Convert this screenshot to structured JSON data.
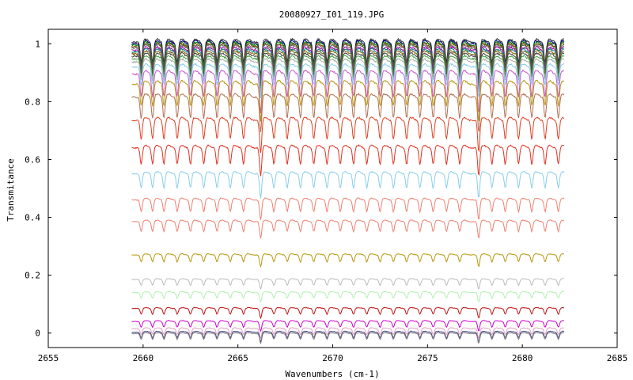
{
  "chart_data": {
    "type": "line",
    "title": "20080927_I01_119.JPG",
    "xlabel": "Wavenumbers (cm-1)",
    "ylabel": "Transmitance",
    "xlim": [
      2655,
      2685
    ],
    "ylim": [
      -0.05,
      1.05
    ],
    "xticks": [
      "2655",
      "2660",
      "2665",
      "2670",
      "2675",
      "2680",
      "2685"
    ],
    "yticks": [
      "0",
      "0.2",
      "0.4",
      "0.6",
      "0.8",
      "1"
    ],
    "grid": false,
    "legend": "none",
    "x_range_of_data": [
      2659.4,
      2682.2
    ],
    "absorption_lines_cm1": [
      2659.9,
      2660.5,
      2661.1,
      2661.8,
      2662.5,
      2663.2,
      2663.9,
      2664.6,
      2665.3,
      2666.2,
      2666.9,
      2667.6,
      2668.3,
      2669.0,
      2669.7,
      2670.4,
      2671.1,
      2671.8,
      2672.5,
      2673.2,
      2673.9,
      2674.6,
      2675.3,
      2676.0,
      2676.7,
      2677.7,
      2678.4,
      2679.1,
      2679.8,
      2680.5,
      2681.2,
      2681.9
    ],
    "series": [
      {
        "level": 1.005,
        "color": "#333333"
      },
      {
        "level": 1.0,
        "color": "#000080"
      },
      {
        "level": 0.995,
        "color": "#008000"
      },
      {
        "level": 0.99,
        "color": "#804000"
      },
      {
        "level": 0.985,
        "color": "#606060"
      },
      {
        "level": 0.978,
        "color": "#a000a0"
      },
      {
        "level": 0.972,
        "color": "#008080"
      },
      {
        "level": 0.965,
        "color": "#806000"
      },
      {
        "level": 0.957,
        "color": "#404040"
      },
      {
        "level": 0.948,
        "color": "#40a040"
      },
      {
        "level": 0.937,
        "color": "#aaaaaa"
      },
      {
        "level": 0.92,
        "color": "#87ceeb"
      },
      {
        "level": 0.895,
        "color": "#cc55cc"
      },
      {
        "level": 0.86,
        "color": "#b8960c"
      },
      {
        "level": 0.815,
        "color": "#b07050"
      },
      {
        "level": 0.735,
        "color": "#e04020"
      },
      {
        "level": 0.64,
        "color": "#e03020"
      },
      {
        "level": 0.55,
        "color": "#87ceeb"
      },
      {
        "level": 0.46,
        "color": "#f08070"
      },
      {
        "level": 0.385,
        "color": "#f08070"
      },
      {
        "level": 0.27,
        "color": "#b8960c"
      },
      {
        "level": 0.185,
        "color": "#bbbbbb"
      },
      {
        "level": 0.14,
        "color": "#b0f0b0"
      },
      {
        "level": 0.085,
        "color": "#c01010"
      },
      {
        "level": 0.04,
        "color": "#cc00cc"
      },
      {
        "level": 0.015,
        "color": "#e0a0c0"
      },
      {
        "level": 0.003,
        "color": "#404080"
      },
      {
        "level": -0.002,
        "color": "#808080"
      }
    ]
  }
}
